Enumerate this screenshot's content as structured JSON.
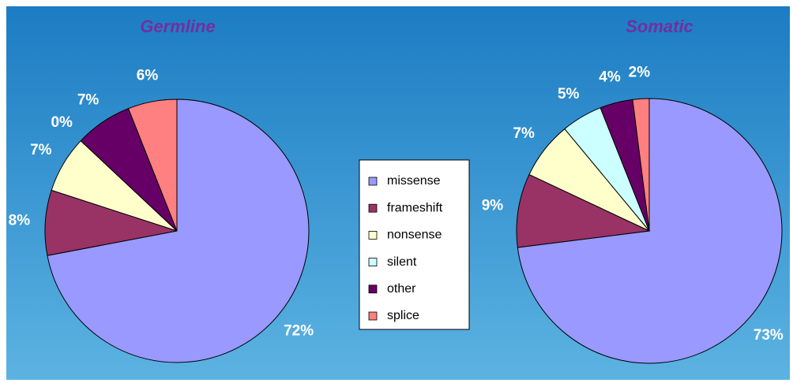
{
  "chart_data": [
    {
      "type": "pie",
      "title": "Germline",
      "values": [
        72,
        8,
        7,
        0,
        7,
        6
      ],
      "value_labels": [
        "72%",
        "8%",
        "7%",
        "0%",
        "7%",
        "6%"
      ]
    },
    {
      "type": "pie",
      "title": "Somatic",
      "values": [
        73,
        9,
        7,
        5,
        4,
        2
      ],
      "value_labels": [
        "73%",
        "9%",
        "7%",
        "5%",
        "4%",
        "2%"
      ]
    }
  ],
  "legend": {
    "labels": [
      "missense",
      "frameshift",
      "nonsense",
      "silent",
      "other",
      "splice"
    ],
    "colors": [
      "#9999ff",
      "#993366",
      "#ffffcc",
      "#ccffff",
      "#660066",
      "#ff8080"
    ]
  }
}
